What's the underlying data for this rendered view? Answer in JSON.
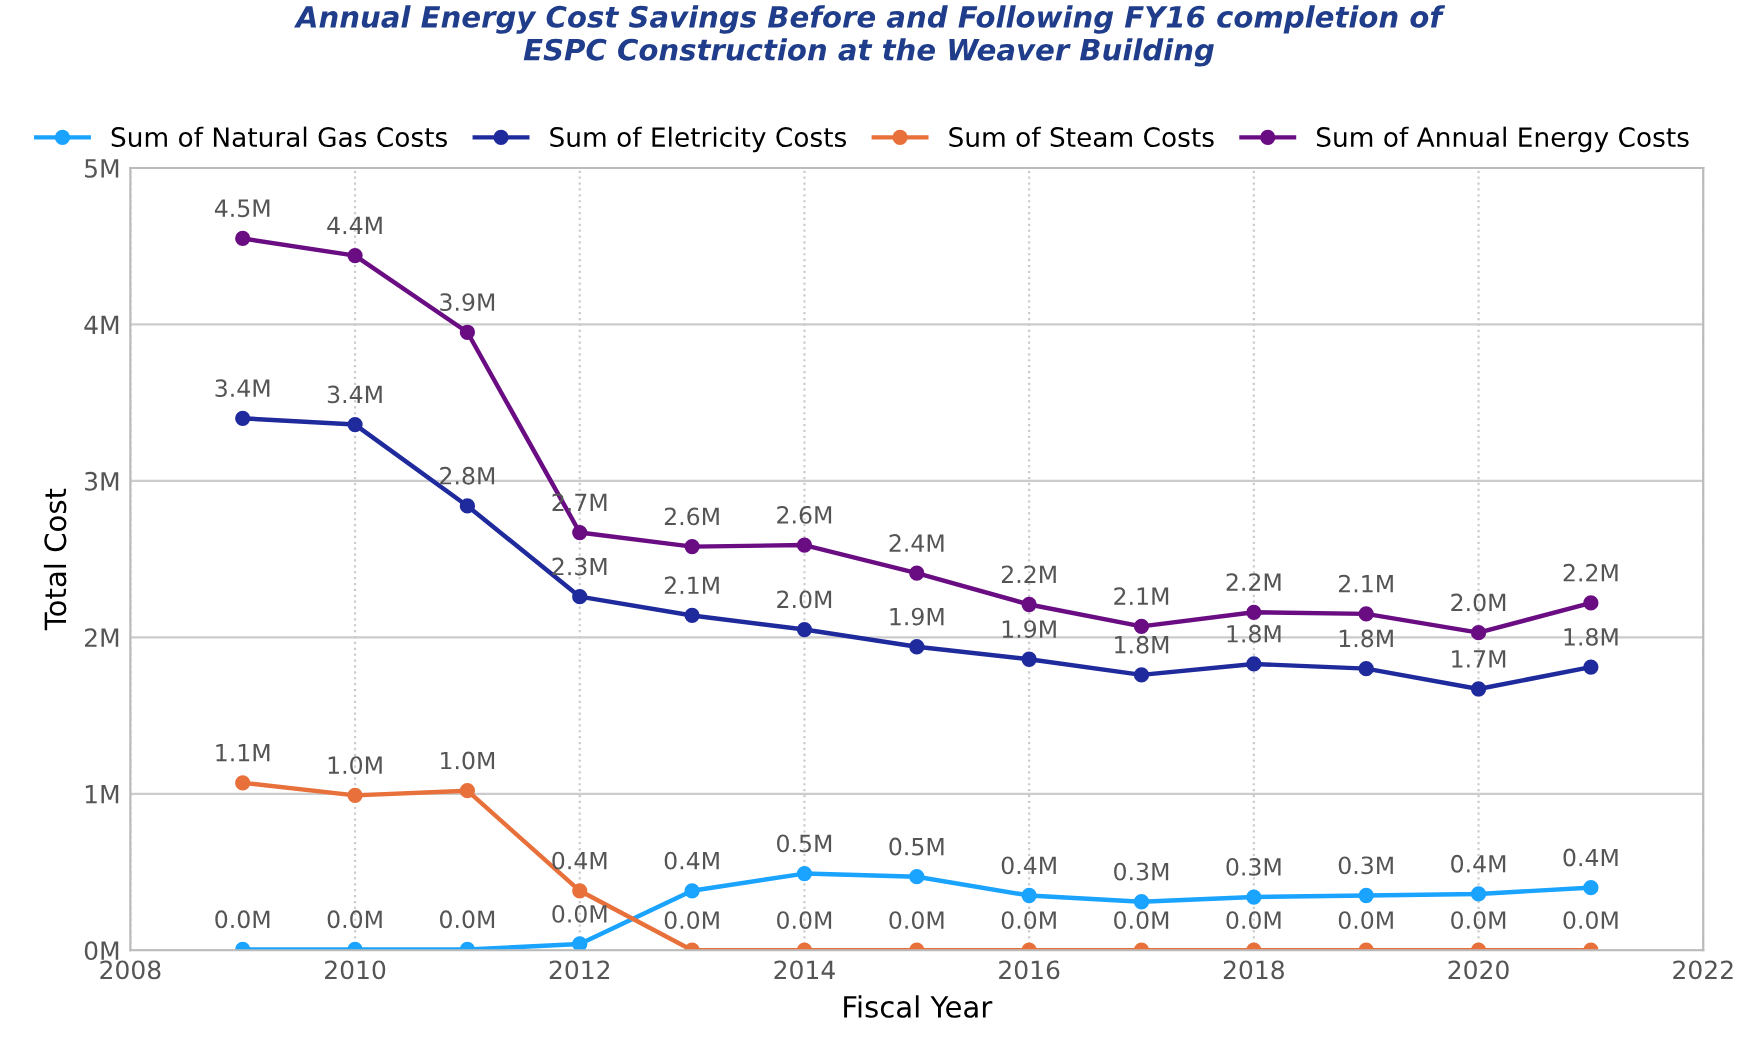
{
  "chart_data": {
    "type": "line",
    "title": "Annual Energy Cost Savings Before and Following FY16 completion of\nESPC Construction at the Weaver Building",
    "xlabel": "Fiscal Year",
    "ylabel": "Total Cost",
    "x": [
      2009,
      2010,
      2011,
      2012,
      2013,
      2014,
      2015,
      2016,
      2017,
      2018,
      2019,
      2020,
      2021
    ],
    "series": [
      {
        "name": "Sum of Natural Gas Costs",
        "color": "#1aa3ff",
        "values": [
          0.005,
          0.005,
          0.005,
          0.04,
          0.38,
          0.49,
          0.47,
          0.35,
          0.31,
          0.34,
          0.35,
          0.36,
          0.4
        ],
        "value_labels": [
          "0.0M",
          "0.0M",
          "0.0M",
          "0.0M",
          "0.4M",
          "0.5M",
          "0.5M",
          "0.4M",
          "0.3M",
          "0.3M",
          "0.3M",
          "0.4M",
          "0.4M"
        ]
      },
      {
        "name": "Sum of Eletricity Costs",
        "color": "#1f2a9c",
        "values": [
          3.4,
          3.36,
          2.84,
          2.26,
          2.14,
          2.05,
          1.94,
          1.86,
          1.76,
          1.83,
          1.8,
          1.67,
          1.81
        ],
        "value_labels": [
          "3.4M",
          "3.4M",
          "2.8M",
          "2.3M",
          "2.1M",
          "2.0M",
          "1.9M",
          "1.9M",
          "1.8M",
          "1.8M",
          "1.8M",
          "1.7M",
          "1.8M"
        ]
      },
      {
        "name": "Sum of Steam Costs",
        "color": "#e8703a",
        "values": [
          1.07,
          0.99,
          1.02,
          0.38,
          0,
          0,
          0,
          0,
          0,
          0,
          0,
          0,
          0
        ],
        "value_labels": [
          "1.1M",
          "1.0M",
          "1.0M",
          "0.4M",
          "0.0M",
          "0.0M",
          "0.0M",
          "0.0M",
          "0.0M",
          "0.0M",
          "0.0M",
          "0.0M",
          "0.0M"
        ]
      },
      {
        "name": "Sum of Annual Energy Costs",
        "color": "#6a0d83",
        "values": [
          4.55,
          4.44,
          3.95,
          2.67,
          2.58,
          2.59,
          2.41,
          2.21,
          2.07,
          2.16,
          2.15,
          2.03,
          2.22
        ],
        "value_labels": [
          "4.5M",
          "4.4M",
          "3.9M",
          "2.7M",
          "2.6M",
          "2.6M",
          "2.4M",
          "2.2M",
          "2.1M",
          "2.2M",
          "2.1M",
          "2.0M",
          "2.2M"
        ]
      }
    ],
    "xlim": [
      2008,
      2022
    ],
    "xticks": [
      2008,
      2010,
      2012,
      2014,
      2016,
      2018,
      2020,
      2022
    ],
    "ylim": [
      0,
      5
    ],
    "yticks": [
      {
        "value": 0,
        "label": "0M"
      },
      {
        "value": 1,
        "label": "1M"
      },
      {
        "value": 2,
        "label": "2M"
      },
      {
        "value": 3,
        "label": "3M"
      },
      {
        "value": 4,
        "label": "4M"
      },
      {
        "value": 5,
        "label": "5M"
      }
    ],
    "grid": true,
    "legend": "top left",
    "marker": "circle",
    "line_style": "solid"
  }
}
